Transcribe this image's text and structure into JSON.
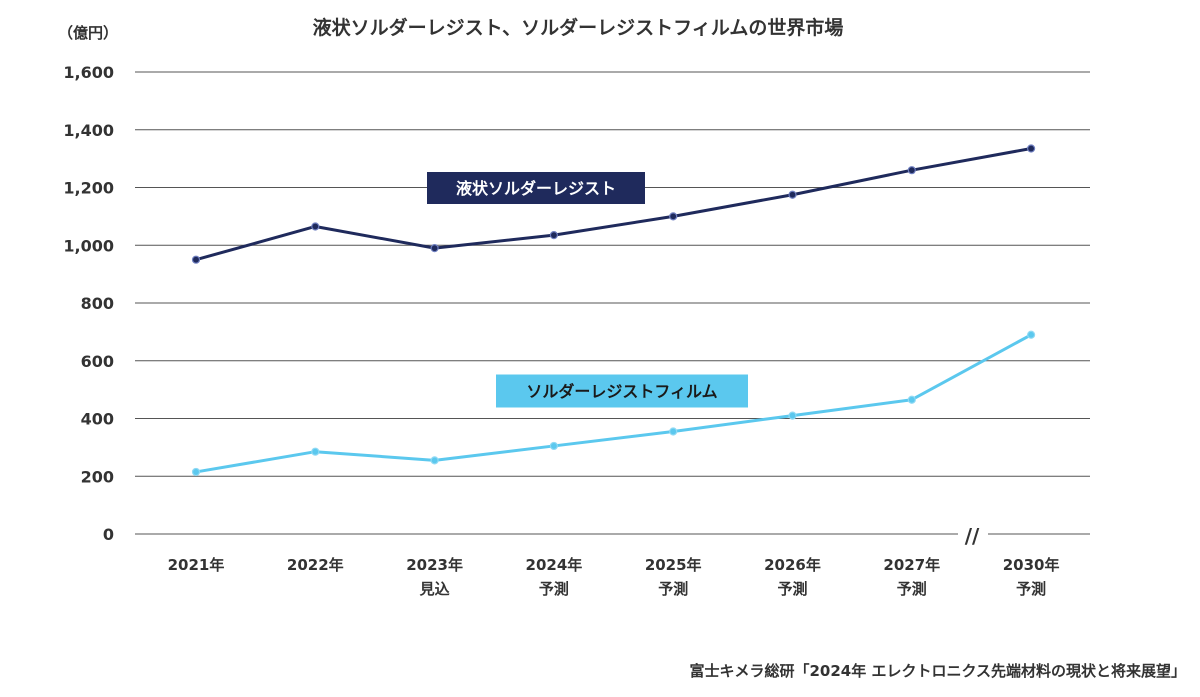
{
  "chart_data": {
    "type": "line",
    "title": "液状ソルダーレジスト、ソルダーレジストフィルムの世界市場",
    "unit_label": "（億円）",
    "ylim": [
      0,
      1600
    ],
    "y_ticks": [
      "0",
      "200",
      "400",
      "600",
      "800",
      "1,000",
      "1,200",
      "1,400",
      "1,600"
    ],
    "y_tick_values": [
      0,
      200,
      400,
      600,
      800,
      1000,
      1200,
      1400,
      1600
    ],
    "categories": [
      [
        "2021年"
      ],
      [
        "2022年"
      ],
      [
        "2023年",
        "見込"
      ],
      [
        "2024年",
        "予測"
      ],
      [
        "2025年",
        "予測"
      ],
      [
        "2026年",
        "予測"
      ],
      [
        "2027年",
        "予測"
      ],
      [
        "2030年",
        "予測"
      ]
    ],
    "axis_break": "//",
    "grid": true,
    "series": [
      {
        "name": "液状ソルダーレジスト",
        "color": "#1f2a5c",
        "label_text_color": "#ffffff",
        "values": [
          950,
          1065,
          990,
          1035,
          1100,
          1175,
          1260,
          1335
        ]
      },
      {
        "name": "ソルダーレジストフィルム",
        "color": "#5bc8ee",
        "label_text_color": "#1a1a1a",
        "values": [
          215,
          285,
          255,
          305,
          355,
          410,
          465,
          690
        ]
      }
    ],
    "source": "富士キメラ総研「2024年 エレクトロニクス先端材料の現状と将来展望」"
  }
}
